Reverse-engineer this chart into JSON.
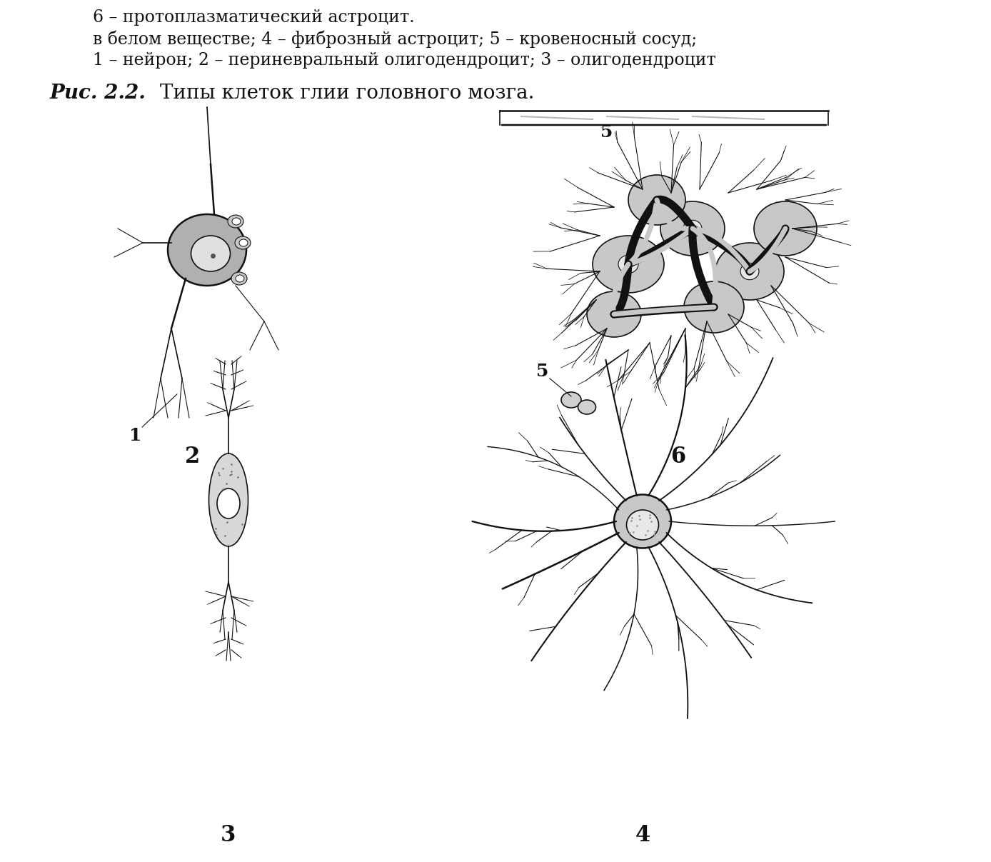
{
  "bg_color": "#ffffff",
  "title_bold": "Рис. 2.2.",
  "title_normal": " Типы клеток глии головного мозга.",
  "caption_line1": "1 – нейрон; 2 – периневральный олигодендроцит; 3 – олигодендроцит",
  "caption_line2": "в белом веществе; 4 – фиброзный астроцит; 5 – кровеносный сосуд;",
  "caption_line3": "6 – протоплазматический астроцит.",
  "label_3": "3",
  "label_4": "4",
  "label_2": "2",
  "label_6": "6",
  "label_1": "1",
  "label_5_top": "5",
  "label_5_bottom": "5",
  "ink_color": "#111111",
  "light_gray": "#cccccc",
  "medium_gray": "#888888"
}
